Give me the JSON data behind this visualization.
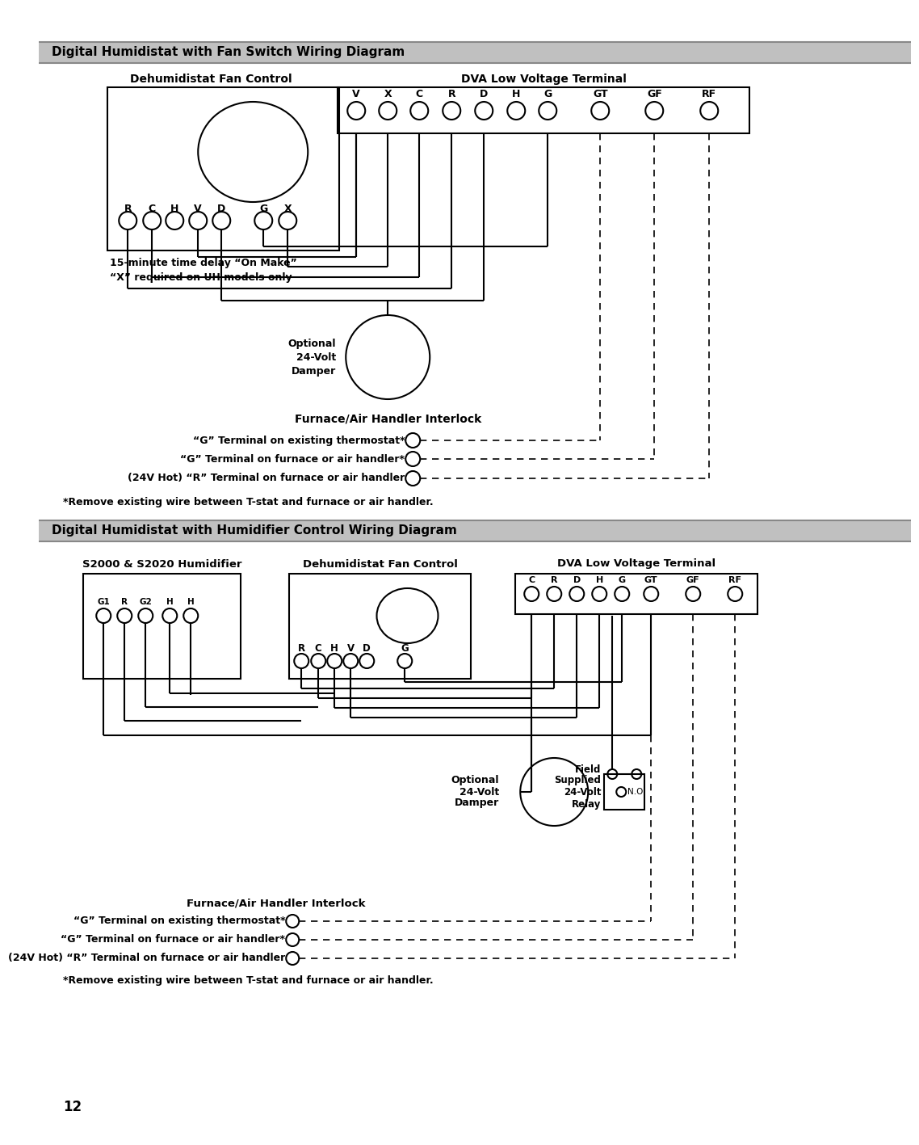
{
  "title1": "Digital Humidistat with Fan Switch Wiring Diagram",
  "title2": "Digital Humidistat with Humidifier Control Wiring Diagram",
  "page_number": "12",
  "bg_color": "#ffffff",
  "header_bg": "#c0c0c0",
  "section1": {
    "dfc_label": "Dehumidistat Fan Control",
    "dva_label": "DVA Low Voltage Terminal",
    "dva_terminals": [
      "V",
      "X",
      "C",
      "R",
      "D",
      "H",
      "G",
      "GT",
      "GF",
      "RF"
    ],
    "dfc_terminals": [
      "R",
      "C",
      "H",
      "V",
      "D",
      "G",
      "X"
    ],
    "note1": "15-minute time delay “On Make”",
    "note2": "“X” required on UH models only",
    "damper_label1": "Optional",
    "damper_label2": "24-Volt",
    "damper_label3": "Damper",
    "interlock_label": "Furnace/Air Handler Interlock",
    "g_terminal1": "“G” Terminal on existing thermostat*",
    "g_terminal2": "“G” Terminal on furnace or air handler*",
    "r_terminal": "(24V Hot) “R” Terminal on furnace or air handler",
    "footnote": "*Remove existing wire between T-stat and furnace or air handler."
  },
  "section2": {
    "s2000_label": "S2000 & S2020 Humidifier",
    "dfc_label": "Dehumidistat Fan Control",
    "dva_label": "DVA Low Voltage Terminal",
    "s2000_terminals": [
      "G1",
      "R",
      "G2",
      "H",
      "H"
    ],
    "dva_terminals": [
      "C",
      "R",
      "D",
      "H",
      "G",
      "GT",
      "GF",
      "RF"
    ],
    "dfc_terminals": [
      "R",
      "C",
      "H",
      "V",
      "D",
      "G"
    ],
    "damper_label1": "Optional",
    "damper_label2": "24-Volt",
    "damper_label3": "Damper",
    "relay_label1": "Field",
    "relay_label2": "Supplied",
    "relay_label3": "24-Volt",
    "relay_label4": "Relay",
    "relay_no": "N.O.",
    "interlock_label": "Furnace/Air Handler Interlock",
    "g_terminal1": "“G” Terminal on existing thermostat*",
    "g_terminal2": "“G” Terminal on furnace or air handler*",
    "r_terminal": "(24V Hot) “R” Terminal on furnace or air handler",
    "footnote": "*Remove existing wire between T-stat and furnace or air handler."
  }
}
